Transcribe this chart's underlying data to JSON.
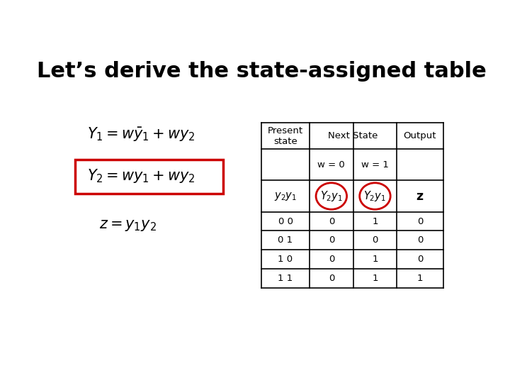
{
  "title": "Let’s derive the state-assigned table",
  "bg_color": "#ffffff",
  "title_fontsize": 22,
  "present_states": [
    "0 0",
    "0 1",
    "1 0",
    "1 1"
  ],
  "w0_values": [
    "0",
    "0",
    "0",
    "0"
  ],
  "w1_values": [
    "1",
    "0",
    "1",
    "1"
  ],
  "output_values": [
    "0",
    "0",
    "0",
    "1"
  ],
  "circle_color": "#cc0000",
  "red_box_color": "#cc0000"
}
